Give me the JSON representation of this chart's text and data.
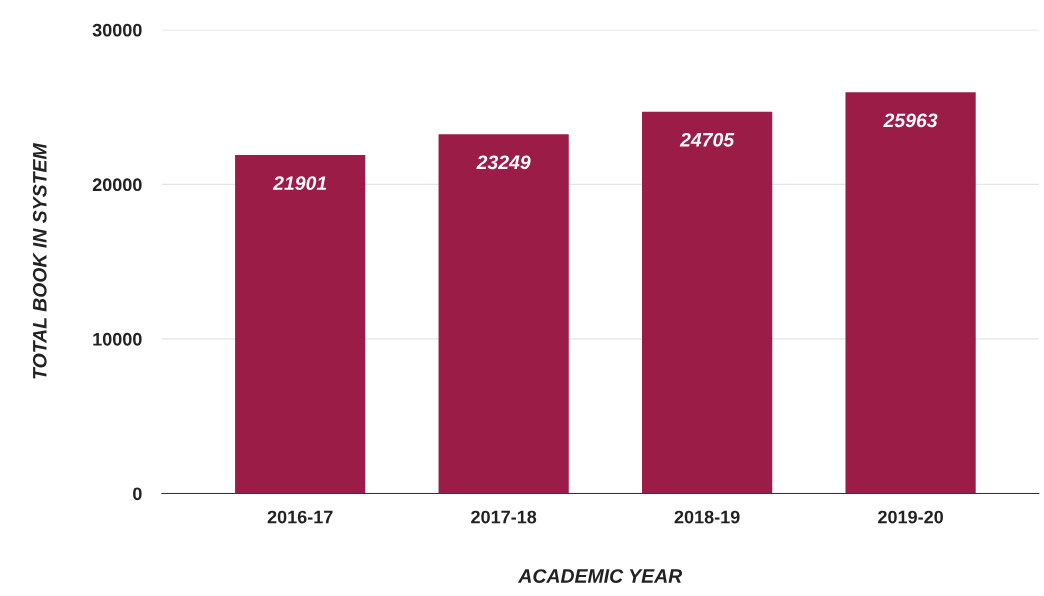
{
  "chart_data": {
    "type": "bar",
    "xlabel": "ACADEMIC YEAR",
    "ylabel": "TOTAL BOOK IN SYSTEM",
    "categories": [
      "2016-17",
      "2017-18",
      "2018-19",
      "2019-20"
    ],
    "values": [
      21901,
      23249,
      24705,
      25963
    ],
    "color": "#9c1c48",
    "ylim": [
      0,
      30000
    ],
    "yticks": [
      0,
      10000,
      20000,
      30000
    ],
    "grid": "y",
    "data_labels": true
  }
}
